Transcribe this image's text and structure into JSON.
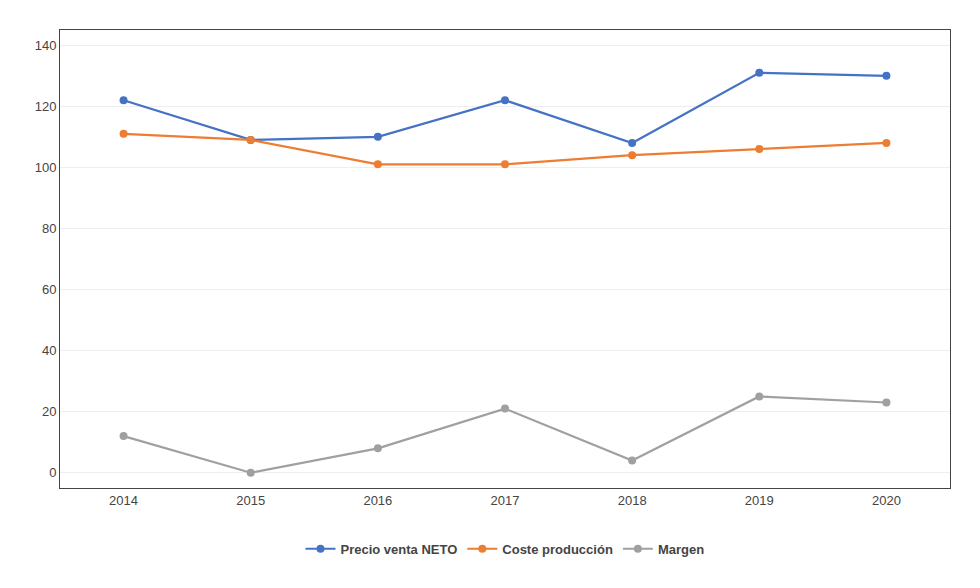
{
  "chart_data": {
    "type": "line",
    "x": [
      2014,
      2015,
      2016,
      2017,
      2018,
      2019,
      2020
    ],
    "series": [
      {
        "name": "Precio venta NETO",
        "color": "#4472C4",
        "values": [
          122,
          109,
          110,
          122,
          108,
          131,
          130
        ]
      },
      {
        "name": "Coste producción",
        "color": "#ED7D31",
        "values": [
          111,
          109,
          101,
          101,
          104,
          106,
          108
        ]
      },
      {
        "name": "Margen",
        "color": "#A0A0A0",
        "values": [
          12,
          0,
          8,
          21,
          4,
          25,
          23
        ]
      }
    ],
    "xlim": [
      2013.5,
      2020.5
    ],
    "xticks": [
      2014,
      2015,
      2016,
      2017,
      2018,
      2019,
      2020
    ],
    "ylim": [
      -5,
      145
    ],
    "yticks": [
      0,
      20,
      40,
      60,
      80,
      100,
      120,
      140
    ],
    "grid": "y",
    "legend": "bottom",
    "marker": "circle"
  }
}
